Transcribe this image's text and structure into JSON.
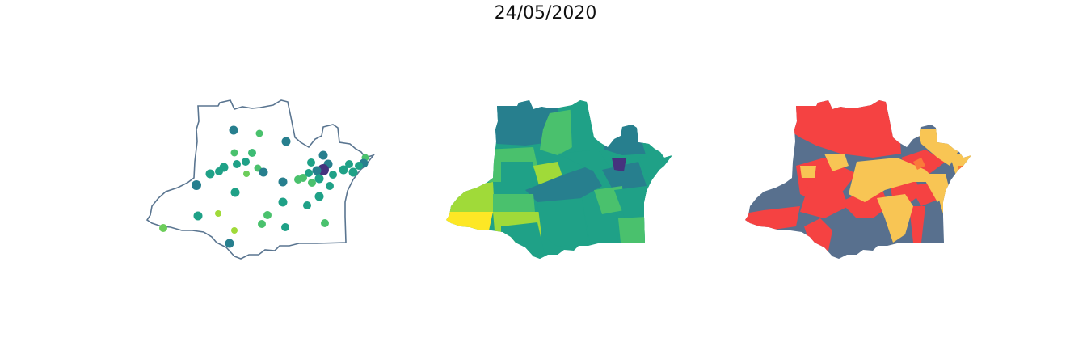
{
  "title": "24/05/2020",
  "colors": {
    "outline": "#5a7590",
    "viridis": [
      "#46327e",
      "#365c8d",
      "#277f8e",
      "#1fa187",
      "#4ac16d",
      "#a0da39",
      "#fde725"
    ],
    "risk_red": "#f54242",
    "risk_yellow": "#f8c554",
    "risk_slate": "#58708e"
  },
  "panels": [
    {
      "name": "points-map"
    },
    {
      "name": "choropleth-map"
    },
    {
      "name": "risk-map"
    }
  ]
}
